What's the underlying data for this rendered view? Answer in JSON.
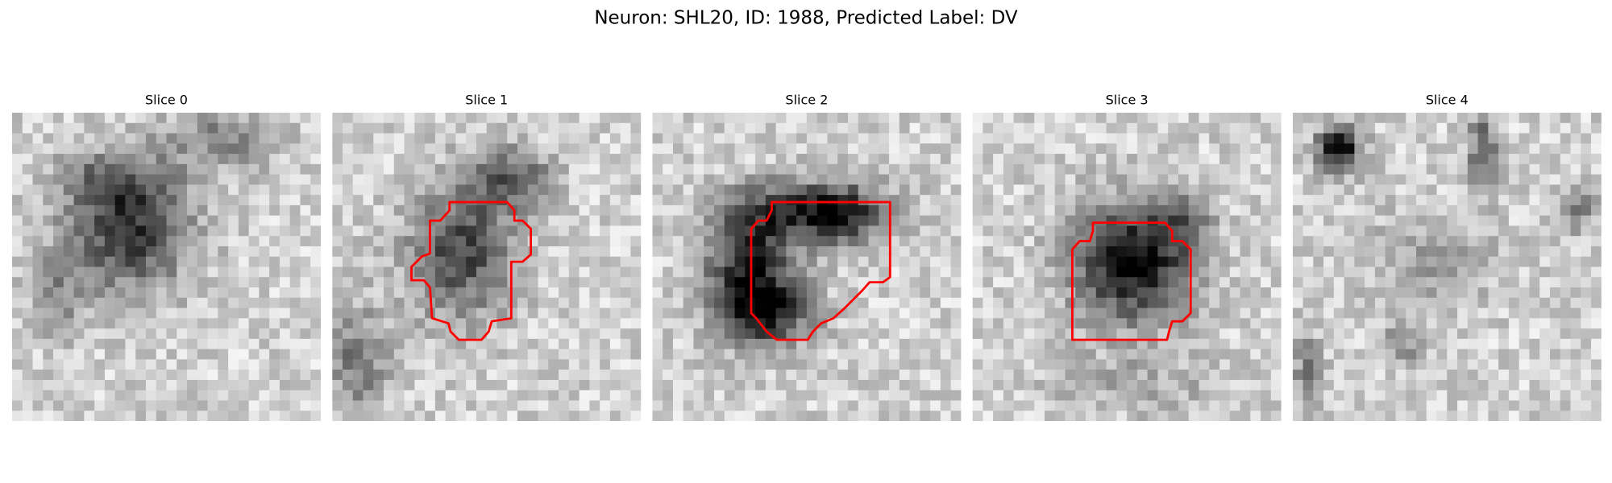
{
  "title": "Neuron: SHL20, ID: 1988, Predicted Label: DV",
  "panels": [
    {
      "title": "Slice 0"
    },
    {
      "title": "Slice 1"
    },
    {
      "title": "Slice 2"
    },
    {
      "title": "Slice 3"
    },
    {
      "title": "Slice 4"
    }
  ]
}
